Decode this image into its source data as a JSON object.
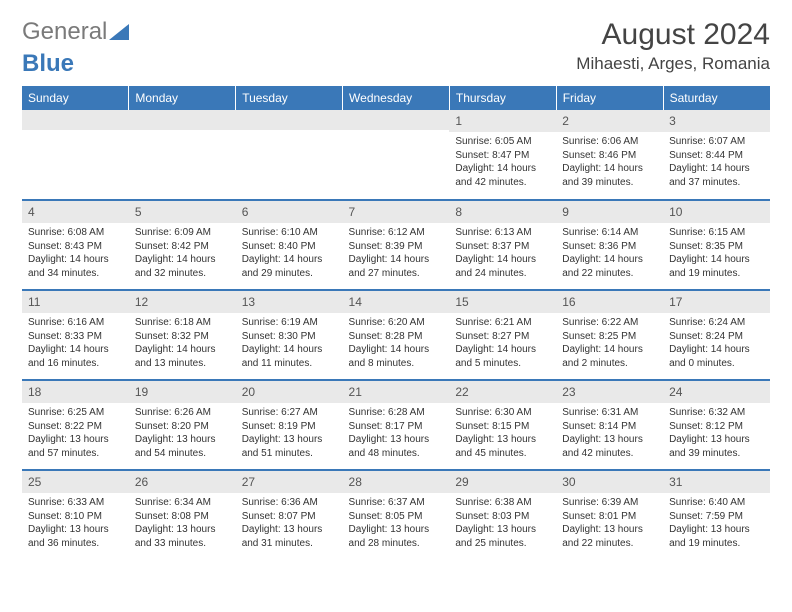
{
  "logo": {
    "text1": "General",
    "text2": "Blue"
  },
  "title": "August 2024",
  "location": "Mihaesti, Arges, Romania",
  "colors": {
    "header_bg": "#3a78b8",
    "header_text": "#ffffff",
    "daynum_bg": "#e9e9e9",
    "row_divider": "#3a78b8",
    "body_text": "#333333"
  },
  "weekdays": [
    "Sunday",
    "Monday",
    "Tuesday",
    "Wednesday",
    "Thursday",
    "Friday",
    "Saturday"
  ],
  "weeks": [
    [
      null,
      null,
      null,
      null,
      {
        "n": "1",
        "sr": "Sunrise: 6:05 AM",
        "ss": "Sunset: 8:47 PM",
        "dl": "Daylight: 14 hours and 42 minutes."
      },
      {
        "n": "2",
        "sr": "Sunrise: 6:06 AM",
        "ss": "Sunset: 8:46 PM",
        "dl": "Daylight: 14 hours and 39 minutes."
      },
      {
        "n": "3",
        "sr": "Sunrise: 6:07 AM",
        "ss": "Sunset: 8:44 PM",
        "dl": "Daylight: 14 hours and 37 minutes."
      }
    ],
    [
      {
        "n": "4",
        "sr": "Sunrise: 6:08 AM",
        "ss": "Sunset: 8:43 PM",
        "dl": "Daylight: 14 hours and 34 minutes."
      },
      {
        "n": "5",
        "sr": "Sunrise: 6:09 AM",
        "ss": "Sunset: 8:42 PM",
        "dl": "Daylight: 14 hours and 32 minutes."
      },
      {
        "n": "6",
        "sr": "Sunrise: 6:10 AM",
        "ss": "Sunset: 8:40 PM",
        "dl": "Daylight: 14 hours and 29 minutes."
      },
      {
        "n": "7",
        "sr": "Sunrise: 6:12 AM",
        "ss": "Sunset: 8:39 PM",
        "dl": "Daylight: 14 hours and 27 minutes."
      },
      {
        "n": "8",
        "sr": "Sunrise: 6:13 AM",
        "ss": "Sunset: 8:37 PM",
        "dl": "Daylight: 14 hours and 24 minutes."
      },
      {
        "n": "9",
        "sr": "Sunrise: 6:14 AM",
        "ss": "Sunset: 8:36 PM",
        "dl": "Daylight: 14 hours and 22 minutes."
      },
      {
        "n": "10",
        "sr": "Sunrise: 6:15 AM",
        "ss": "Sunset: 8:35 PM",
        "dl": "Daylight: 14 hours and 19 minutes."
      }
    ],
    [
      {
        "n": "11",
        "sr": "Sunrise: 6:16 AM",
        "ss": "Sunset: 8:33 PM",
        "dl": "Daylight: 14 hours and 16 minutes."
      },
      {
        "n": "12",
        "sr": "Sunrise: 6:18 AM",
        "ss": "Sunset: 8:32 PM",
        "dl": "Daylight: 14 hours and 13 minutes."
      },
      {
        "n": "13",
        "sr": "Sunrise: 6:19 AM",
        "ss": "Sunset: 8:30 PM",
        "dl": "Daylight: 14 hours and 11 minutes."
      },
      {
        "n": "14",
        "sr": "Sunrise: 6:20 AM",
        "ss": "Sunset: 8:28 PM",
        "dl": "Daylight: 14 hours and 8 minutes."
      },
      {
        "n": "15",
        "sr": "Sunrise: 6:21 AM",
        "ss": "Sunset: 8:27 PM",
        "dl": "Daylight: 14 hours and 5 minutes."
      },
      {
        "n": "16",
        "sr": "Sunrise: 6:22 AM",
        "ss": "Sunset: 8:25 PM",
        "dl": "Daylight: 14 hours and 2 minutes."
      },
      {
        "n": "17",
        "sr": "Sunrise: 6:24 AM",
        "ss": "Sunset: 8:24 PM",
        "dl": "Daylight: 14 hours and 0 minutes."
      }
    ],
    [
      {
        "n": "18",
        "sr": "Sunrise: 6:25 AM",
        "ss": "Sunset: 8:22 PM",
        "dl": "Daylight: 13 hours and 57 minutes."
      },
      {
        "n": "19",
        "sr": "Sunrise: 6:26 AM",
        "ss": "Sunset: 8:20 PM",
        "dl": "Daylight: 13 hours and 54 minutes."
      },
      {
        "n": "20",
        "sr": "Sunrise: 6:27 AM",
        "ss": "Sunset: 8:19 PM",
        "dl": "Daylight: 13 hours and 51 minutes."
      },
      {
        "n": "21",
        "sr": "Sunrise: 6:28 AM",
        "ss": "Sunset: 8:17 PM",
        "dl": "Daylight: 13 hours and 48 minutes."
      },
      {
        "n": "22",
        "sr": "Sunrise: 6:30 AM",
        "ss": "Sunset: 8:15 PM",
        "dl": "Daylight: 13 hours and 45 minutes."
      },
      {
        "n": "23",
        "sr": "Sunrise: 6:31 AM",
        "ss": "Sunset: 8:14 PM",
        "dl": "Daylight: 13 hours and 42 minutes."
      },
      {
        "n": "24",
        "sr": "Sunrise: 6:32 AM",
        "ss": "Sunset: 8:12 PM",
        "dl": "Daylight: 13 hours and 39 minutes."
      }
    ],
    [
      {
        "n": "25",
        "sr": "Sunrise: 6:33 AM",
        "ss": "Sunset: 8:10 PM",
        "dl": "Daylight: 13 hours and 36 minutes."
      },
      {
        "n": "26",
        "sr": "Sunrise: 6:34 AM",
        "ss": "Sunset: 8:08 PM",
        "dl": "Daylight: 13 hours and 33 minutes."
      },
      {
        "n": "27",
        "sr": "Sunrise: 6:36 AM",
        "ss": "Sunset: 8:07 PM",
        "dl": "Daylight: 13 hours and 31 minutes."
      },
      {
        "n": "28",
        "sr": "Sunrise: 6:37 AM",
        "ss": "Sunset: 8:05 PM",
        "dl": "Daylight: 13 hours and 28 minutes."
      },
      {
        "n": "29",
        "sr": "Sunrise: 6:38 AM",
        "ss": "Sunset: 8:03 PM",
        "dl": "Daylight: 13 hours and 25 minutes."
      },
      {
        "n": "30",
        "sr": "Sunrise: 6:39 AM",
        "ss": "Sunset: 8:01 PM",
        "dl": "Daylight: 13 hours and 22 minutes."
      },
      {
        "n": "31",
        "sr": "Sunrise: 6:40 AM",
        "ss": "Sunset: 7:59 PM",
        "dl": "Daylight: 13 hours and 19 minutes."
      }
    ]
  ]
}
